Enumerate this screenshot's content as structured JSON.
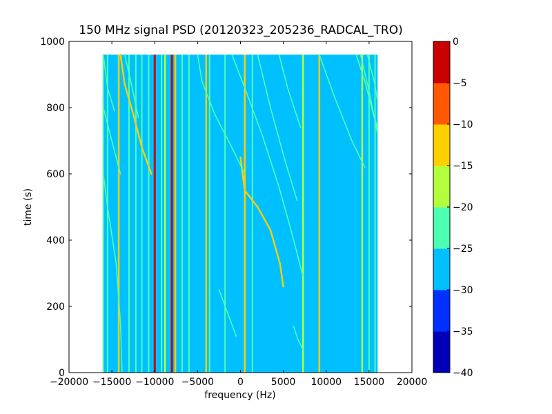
{
  "chart_data": {
    "type": "heatmap",
    "title": "150 MHz signal PSD (20120323_205236_RADCAL_TRO)",
    "xlabel": "frequency (Hz)",
    "ylabel": "time (s)",
    "xlim": [
      -20000,
      20000
    ],
    "ylim": [
      0,
      1000
    ],
    "xticks": [
      -20000,
      -15000,
      -10000,
      -5000,
      0,
      5000,
      10000,
      15000,
      20000
    ],
    "xtick_labels": [
      "−20000",
      "−15000",
      "−10000",
      "−5000",
      "0",
      "5000",
      "10000",
      "15000",
      "20000"
    ],
    "yticks": [
      0,
      200,
      400,
      600,
      800,
      1000
    ],
    "ytick_labels": [
      "0",
      "200",
      "400",
      "600",
      "800",
      "1000"
    ],
    "data_extent": {
      "x": [
        -16000,
        16000
      ],
      "y": [
        0,
        960
      ]
    },
    "background_level": -27.5,
    "colorbar": {
      "levels": [
        -40,
        -35,
        -30,
        -25,
        -20,
        -15,
        -10,
        -5,
        0
      ],
      "tick_labels": [
        "−40",
        "−35",
        "−30",
        "−25",
        "−20",
        "−15",
        "−10",
        "−5",
        "0"
      ],
      "colors": [
        "#0000b8",
        "#0030ff",
        "#00c0ff",
        "#4dffb0",
        "#b4ff3c",
        "#ffcf00",
        "#ff5800",
        "#c80000"
      ]
    },
    "vertical_lines": [
      {
        "freq": -16000,
        "level": -22.5
      },
      {
        "freq": -15500,
        "level": -22.5
      },
      {
        "freq": -14200,
        "level": -12.5
      },
      {
        "freq": -13000,
        "level": -22.5
      },
      {
        "freq": -12200,
        "level": -22.5
      },
      {
        "freq": -11500,
        "level": -22.5
      },
      {
        "freq": -10700,
        "level": -22.5
      },
      {
        "freq": -10000,
        "level": -2.5
      },
      {
        "freq": -9200,
        "level": -22.5
      },
      {
        "freq": -8800,
        "level": -17.5
      },
      {
        "freq": -8000,
        "level": -2.5
      },
      {
        "freq": -7600,
        "level": -12.5
      },
      {
        "freq": -6800,
        "level": -22.5
      },
      {
        "freq": -6000,
        "level": -22.5
      },
      {
        "freq": -4000,
        "level": -12.5
      },
      {
        "freq": -3600,
        "level": -22.5
      },
      {
        "freq": -1800,
        "level": -22.5
      },
      {
        "freq": 500,
        "level": -12.5
      },
      {
        "freq": 1400,
        "level": -22.5
      },
      {
        "freq": 7300,
        "level": -17.5
      },
      {
        "freq": 9200,
        "level": -12.5
      },
      {
        "freq": 14200,
        "level": -17.5
      },
      {
        "freq": 15000,
        "level": -22.5
      },
      {
        "freq": 15700,
        "level": -22.5
      }
    ],
    "tracks": [
      {
        "name": "",
        "level": -12.5,
        "points": [
          [
            -14000,
            960
          ],
          [
            -13500,
            870
          ],
          [
            -12500,
            780
          ],
          [
            -11500,
            680
          ],
          [
            -10400,
            600
          ]
        ]
      },
      {
        "name": "",
        "level": -12.5,
        "points": [
          [
            0,
            650
          ],
          [
            500,
            550
          ],
          [
            2000,
            500
          ],
          [
            3500,
            430
          ],
          [
            4600,
            330
          ],
          [
            5000,
            260
          ]
        ]
      },
      {
        "name": "",
        "level": -22.5,
        "points": [
          [
            -5000,
            960
          ],
          [
            -4500,
            880
          ],
          [
            -3000,
            780
          ],
          [
            -1200,
            690
          ],
          [
            500,
            600
          ]
        ]
      },
      {
        "name": "",
        "level": -22.5,
        "points": [
          [
            -1000,
            960
          ],
          [
            500,
            860
          ],
          [
            2500,
            720
          ],
          [
            4500,
            560
          ],
          [
            6000,
            420
          ],
          [
            7300,
            290
          ]
        ]
      },
      {
        "name": "",
        "level": -22.5,
        "points": [
          [
            -16000,
            800
          ],
          [
            -15000,
            700
          ],
          [
            -14000,
            600
          ]
        ]
      },
      {
        "name": "",
        "level": -22.5,
        "points": [
          [
            -16000,
            960
          ],
          [
            -15500,
            860
          ],
          [
            -14700,
            790
          ]
        ]
      },
      {
        "name": "",
        "level": -22.5,
        "points": [
          [
            -16000,
            600
          ],
          [
            -15500,
            500
          ],
          [
            -14500,
            330
          ],
          [
            -14000,
            150
          ],
          [
            -13800,
            0
          ]
        ]
      },
      {
        "name": "",
        "level": -22.5,
        "points": [
          [
            -13500,
            960
          ],
          [
            -12800,
            880
          ],
          [
            -11900,
            770
          ]
        ]
      },
      {
        "name": "",
        "level": -22.5,
        "points": [
          [
            2000,
            960
          ],
          [
            3500,
            800
          ],
          [
            5200,
            640
          ],
          [
            6600,
            520
          ]
        ]
      },
      {
        "name": "",
        "level": -22.5,
        "points": [
          [
            4500,
            960
          ],
          [
            5500,
            860
          ],
          [
            7000,
            740
          ]
        ]
      },
      {
        "name": "",
        "level": -22.5,
        "points": [
          [
            9200,
            960
          ],
          [
            11000,
            830
          ],
          [
            13000,
            700
          ],
          [
            14500,
            620
          ]
        ]
      },
      {
        "name": "",
        "level": -22.5,
        "points": [
          [
            13500,
            960
          ],
          [
            14500,
            880
          ],
          [
            15500,
            780
          ],
          [
            16000,
            740
          ]
        ]
      },
      {
        "name": "",
        "level": -22.5,
        "points": [
          [
            14000,
            960
          ],
          [
            15000,
            850
          ],
          [
            16000,
            720
          ]
        ]
      },
      {
        "name": "",
        "level": -22.5,
        "points": [
          [
            14800,
            960
          ],
          [
            15600,
            880
          ],
          [
            16000,
            820
          ]
        ]
      },
      {
        "name": "",
        "level": -22.5,
        "points": [
          [
            -2500,
            250
          ],
          [
            -1500,
            180
          ],
          [
            -500,
            110
          ]
        ]
      },
      {
        "name": "",
        "level": -22.5,
        "points": [
          [
            6200,
            140
          ],
          [
            6700,
            100
          ],
          [
            7300,
            70
          ]
        ]
      }
    ]
  }
}
